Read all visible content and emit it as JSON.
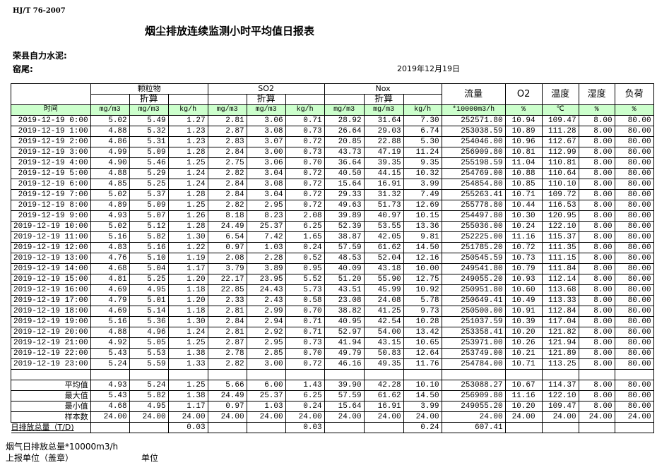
{
  "standard": "HJ/T  76-2007",
  "title": "烟尘排放连续监测小时平均值日报表",
  "company": "荣县自力水泥:",
  "kiln": "窑尾:",
  "date": "2019年12月19日",
  "header": {
    "groups": [
      "颗粒物",
      "SO2",
      "Nox"
    ],
    "converted": "折算",
    "flow": "流量",
    "o2": "O2",
    "temp": "温度",
    "humidity": "湿度",
    "load": "负荷",
    "time": "时间",
    "units": [
      "mg/m3",
      "mg/m3",
      "kg/h",
      "mg/m3",
      "mg/m3",
      "kg/h",
      "mg/m3",
      "mg/m3",
      "kg/h",
      "*10000m3/h",
      "%",
      "℃",
      "%",
      "%"
    ]
  },
  "rows": [
    [
      "2019-12-19 0:00",
      "5.02",
      "5.49",
      "1.27",
      "2.81",
      "3.06",
      "0.71",
      "28.92",
      "31.64",
      "7.30",
      "252571.80",
      "10.94",
      "109.47",
      "8.00",
      "80.00"
    ],
    [
      "2019-12-19 1:00",
      "4.88",
      "5.32",
      "1.23",
      "2.87",
      "3.08",
      "0.73",
      "26.64",
      "29.03",
      "6.74",
      "253038.59",
      "10.89",
      "111.28",
      "8.00",
      "80.00"
    ],
    [
      "2019-12-19 2:00",
      "4.86",
      "5.31",
      "1.23",
      "2.83",
      "3.07",
      "0.72",
      "20.85",
      "22.88",
      "5.30",
      "254046.00",
      "10.96",
      "112.67",
      "8.00",
      "80.00"
    ],
    [
      "2019-12-19 3:00",
      "4.99",
      "5.09",
      "1.28",
      "2.84",
      "3.00",
      "0.73",
      "43.73",
      "47.19",
      "11.24",
      "256909.80",
      "10.81",
      "112.99",
      "8.00",
      "80.00"
    ],
    [
      "2019-12-19 4:00",
      "4.90",
      "5.46",
      "1.25",
      "2.75",
      "3.06",
      "0.70",
      "36.64",
      "39.35",
      "9.35",
      "255198.59",
      "11.04",
      "110.81",
      "8.00",
      "80.00"
    ],
    [
      "2019-12-19 5:00",
      "4.88",
      "5.29",
      "1.24",
      "2.82",
      "3.04",
      "0.72",
      "40.50",
      "44.15",
      "10.32",
      "254769.00",
      "10.88",
      "110.64",
      "8.00",
      "80.00"
    ],
    [
      "2019-12-19 6:00",
      "4.85",
      "5.25",
      "1.24",
      "2.84",
      "3.08",
      "0.72",
      "15.64",
      "16.91",
      "3.99",
      "254854.80",
      "10.85",
      "110.10",
      "8.00",
      "80.00"
    ],
    [
      "2019-12-19 7:00",
      "5.02",
      "5.37",
      "1.28",
      "2.84",
      "3.04",
      "0.72",
      "29.33",
      "31.32",
      "7.49",
      "255263.41",
      "10.71",
      "109.72",
      "8.00",
      "80.00"
    ],
    [
      "2019-12-19 8:00",
      "4.89",
      "5.09",
      "1.25",
      "2.82",
      "2.95",
      "0.72",
      "49.63",
      "51.73",
      "12.69",
      "255778.80",
      "10.44",
      "116.53",
      "8.00",
      "80.00"
    ],
    [
      "2019-12-19 9:00",
      "4.93",
      "5.07",
      "1.26",
      "8.18",
      "8.23",
      "2.08",
      "39.89",
      "40.97",
      "10.15",
      "254497.80",
      "10.30",
      "120.95",
      "8.00",
      "80.00"
    ],
    [
      "2019-12-19 10:00",
      "5.02",
      "5.12",
      "1.28",
      "24.49",
      "25.37",
      "6.25",
      "52.39",
      "53.55",
      "13.36",
      "255036.00",
      "10.24",
      "122.10",
      "8.00",
      "80.00"
    ],
    [
      "2019-12-19 11:00",
      "5.16",
      "5.82",
      "1.30",
      "6.54",
      "7.42",
      "1.65",
      "38.87",
      "42.05",
      "9.81",
      "252225.00",
      "11.16",
      "115.37",
      "8.00",
      "80.00"
    ],
    [
      "2019-12-19 12:00",
      "4.83",
      "5.16",
      "1.22",
      "0.97",
      "1.03",
      "0.24",
      "57.59",
      "61.62",
      "14.50",
      "251785.20",
      "10.72",
      "111.35",
      "8.00",
      "80.00"
    ],
    [
      "2019-12-19 13:00",
      "4.76",
      "5.10",
      "1.19",
      "2.08",
      "2.28",
      "0.52",
      "48.53",
      "52.04",
      "12.16",
      "250545.59",
      "10.73",
      "111.15",
      "8.00",
      "80.00"
    ],
    [
      "2019-12-19 14:00",
      "4.68",
      "5.04",
      "1.17",
      "3.79",
      "3.89",
      "0.95",
      "40.09",
      "43.18",
      "10.00",
      "249541.80",
      "10.79",
      "111.84",
      "8.00",
      "80.00"
    ],
    [
      "2019-12-19 15:00",
      "4.81",
      "5.25",
      "1.20",
      "22.17",
      "23.95",
      "5.52",
      "51.20",
      "55.90",
      "12.75",
      "249055.20",
      "10.93",
      "112.14",
      "8.00",
      "80.00"
    ],
    [
      "2019-12-19 16:00",
      "4.69",
      "4.95",
      "1.18",
      "22.85",
      "24.43",
      "5.73",
      "43.51",
      "45.99",
      "10.92",
      "250951.80",
      "10.60",
      "113.68",
      "8.00",
      "80.00"
    ],
    [
      "2019-12-19 17:00",
      "4.79",
      "5.01",
      "1.20",
      "2.33",
      "2.43",
      "0.58",
      "23.08",
      "24.08",
      "5.78",
      "250649.41",
      "10.49",
      "113.33",
      "8.00",
      "80.00"
    ],
    [
      "2019-12-19 18:00",
      "4.69",
      "5.14",
      "1.18",
      "2.81",
      "2.99",
      "0.70",
      "38.82",
      "41.25",
      "9.73",
      "250500.00",
      "10.91",
      "112.84",
      "8.00",
      "80.00"
    ],
    [
      "2019-12-19 19:00",
      "5.16",
      "5.36",
      "1.30",
      "2.84",
      "2.94",
      "0.71",
      "40.95",
      "42.54",
      "10.28",
      "251037.59",
      "10.39",
      "117.04",
      "8.00",
      "80.00"
    ],
    [
      "2019-12-19 20:00",
      "4.88",
      "4.96",
      "1.24",
      "2.81",
      "2.92",
      "0.71",
      "52.97",
      "54.00",
      "13.42",
      "253358.41",
      "10.20",
      "121.82",
      "8.00",
      "80.00"
    ],
    [
      "2019-12-19 21:00",
      "4.92",
      "5.05",
      "1.25",
      "2.87",
      "2.95",
      "0.73",
      "41.94",
      "43.15",
      "10.65",
      "253971.00",
      "10.26",
      "121.94",
      "8.00",
      "80.00"
    ],
    [
      "2019-12-19 22:00",
      "5.43",
      "5.53",
      "1.38",
      "2.78",
      "2.85",
      "0.70",
      "49.79",
      "50.83",
      "12.64",
      "253749.00",
      "10.21",
      "121.89",
      "8.00",
      "80.00"
    ],
    [
      "2019-12-19 23:00",
      "5.24",
      "5.59",
      "1.33",
      "2.82",
      "3.00",
      "0.72",
      "46.16",
      "49.35",
      "11.76",
      "254784.00",
      "10.71",
      "113.25",
      "8.00",
      "80.00"
    ]
  ],
  "summary": [
    [
      "平均值",
      "4.93",
      "5.24",
      "1.25",
      "5.66",
      "6.00",
      "1.43",
      "39.90",
      "42.28",
      "10.10",
      "253088.27",
      "10.67",
      "114.37",
      "8.00",
      "80.00"
    ],
    [
      "最大值",
      "5.43",
      "5.82",
      "1.38",
      "24.49",
      "25.37",
      "6.25",
      "57.59",
      "61.62",
      "14.50",
      "256909.80",
      "11.16",
      "122.10",
      "8.00",
      "80.00"
    ],
    [
      "最小值",
      "4.68",
      "4.95",
      "1.17",
      "0.97",
      "1.03",
      "0.24",
      "15.64",
      "16.91",
      "3.99",
      "249055.20",
      "10.20",
      "109.47",
      "8.00",
      "80.00"
    ],
    [
      "样本数",
      "24.00",
      "24.00",
      "24.00",
      "24.00",
      "24.00",
      "24.00",
      "24.00",
      "24.00",
      "24.00",
      "24.00",
      "24.00",
      "24.00",
      "24.00",
      "24.00"
    ],
    [
      "日排放总量（T/D)",
      "",
      "",
      "0.03",
      "",
      "",
      "0.03",
      "",
      "",
      "0.24",
      "607.41",
      "",
      "",
      "",
      ""
    ]
  ],
  "footer": {
    "flue_gas_total": "烟气日排放总量*10000m3/h",
    "reporting_unit": "上报单位（盖章）",
    "unit": "单位"
  },
  "colors": {
    "units_row_bg": "#ccffcc"
  }
}
